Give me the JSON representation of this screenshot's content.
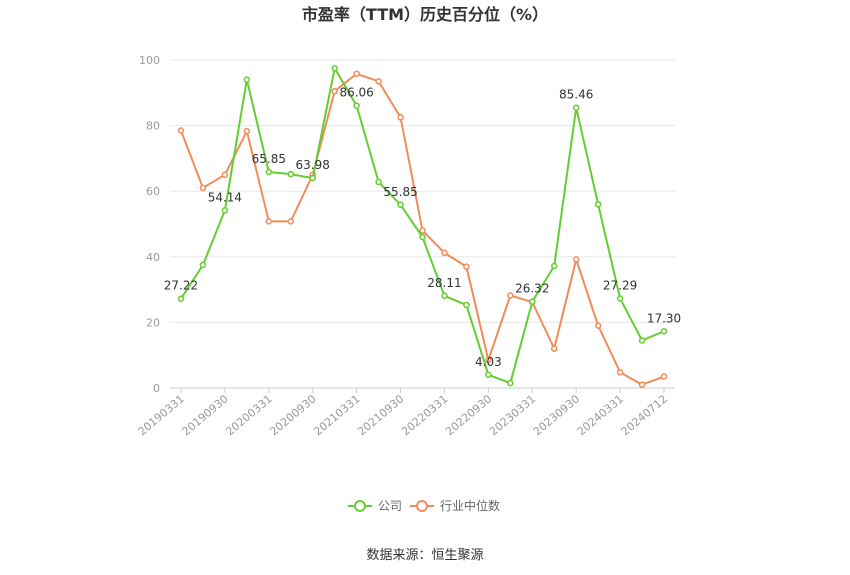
{
  "chart_data": {
    "type": "line",
    "title": "市盈率（TTM）历史百分位（%）",
    "ylim": [
      0,
      100
    ],
    "yticks": [
      0,
      20,
      40,
      60,
      80,
      100
    ],
    "x": [
      "20190331",
      "20190630",
      "20190930",
      "20191231",
      "20200331",
      "20200630",
      "20200930",
      "20201231",
      "20210331",
      "20210630",
      "20210930",
      "20211231",
      "20220331",
      "20220630",
      "20220930",
      "20221231",
      "20230331",
      "20230630",
      "20230930",
      "20231231",
      "20240331",
      "20240630",
      "20240712"
    ],
    "xtick_labels": [
      "20190331",
      "20190930",
      "20200331",
      "20200930",
      "20210331",
      "20210930",
      "20220331",
      "20220930",
      "20230331",
      "20230930",
      "20240331",
      "20240712"
    ],
    "series": [
      {
        "name": "公司",
        "color": "#66cc33",
        "values": [
          27.22,
          37.5,
          54.14,
          94,
          65.85,
          65.2,
          63.98,
          97.5,
          86.06,
          62.8,
          55.85,
          46,
          28.11,
          25.3,
          4.03,
          1.5,
          26.32,
          37.2,
          85.46,
          56,
          27.29,
          14.5,
          17.3
        ],
        "labels": [
          "27.22",
          "",
          "54.14",
          "",
          "65.85",
          "",
          "63.98",
          "",
          "86.06",
          "",
          "55.85",
          "",
          "28.11",
          "",
          "4.03",
          "",
          "26.32",
          "",
          "85.46",
          "",
          "27.29",
          "",
          "17.30"
        ]
      },
      {
        "name": "行业中位数",
        "color": "#f08c5a",
        "values": [
          78.5,
          61,
          65,
          78.3,
          50.8,
          50.8,
          65,
          90.5,
          95.8,
          93.5,
          82.5,
          48,
          41.2,
          37,
          8.5,
          28.2,
          26.2,
          12,
          39.2,
          19,
          4.8,
          1,
          3.5
        ]
      }
    ],
    "legend_position": "bottom",
    "grid": true,
    "source": "数据来源：恒生聚源"
  }
}
